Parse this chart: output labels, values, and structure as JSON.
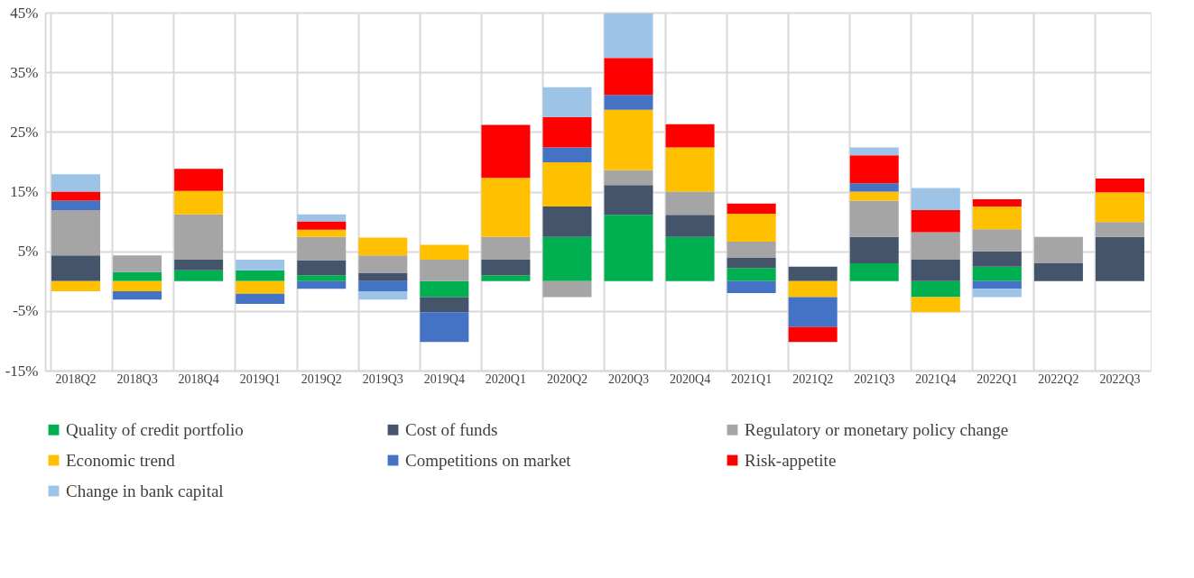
{
  "chart_data": {
    "type": "bar",
    "stacked": true,
    "categories": [
      "2018Q2",
      "2018Q3",
      "2018Q4",
      "2019Q1",
      "2019Q2",
      "2019Q3",
      "2019Q4",
      "2020Q1",
      "2020Q2",
      "2020Q3",
      "2020Q4",
      "2021Q1",
      "2021Q2",
      "2021Q3",
      "2021Q4",
      "2022Q1",
      "2022Q2",
      "2022Q3"
    ],
    "series": [
      {
        "name": "Quality of credit portfolio",
        "color": "#00b050",
        "values": [
          null,
          1.5,
          1.8,
          1.8,
          1.0,
          null,
          -2.7,
          1.0,
          7.4,
          11.1,
          7.4,
          2.2,
          null,
          3.0,
          -2.7,
          2.4,
          null,
          null
        ]
      },
      {
        "name": "Cost of funds",
        "color": "#44546a",
        "values": [
          4.3,
          null,
          1.8,
          null,
          2.5,
          1.4,
          -2.5,
          2.6,
          5.1,
          5.0,
          3.7,
          1.7,
          2.4,
          4.4,
          3.6,
          2.6,
          3.0,
          7.4
        ]
      },
      {
        "name": "Regulatory or monetary policy change",
        "color": "#a5a5a5",
        "values": [
          7.6,
          2.8,
          7.6,
          null,
          3.9,
          2.9,
          3.6,
          3.8,
          -2.7,
          2.5,
          3.9,
          2.7,
          null,
          6.1,
          4.6,
          3.7,
          4.4,
          2.5
        ]
      },
      {
        "name": "Economic trend",
        "color": "#ffc000",
        "values": [
          -1.7,
          -1.7,
          3.9,
          -2.1,
          1.2,
          3.0,
          2.5,
          9.9,
          7.4,
          10.1,
          7.4,
          4.7,
          -2.7,
          1.5,
          -2.5,
          3.8,
          null,
          5.0
        ]
      },
      {
        "name": "Competitions on market",
        "color": "#4472c4",
        "values": [
          1.6,
          -1.4,
          null,
          -1.7,
          -1.3,
          -1.7,
          -5.0,
          null,
          2.5,
          2.5,
          null,
          -2.0,
          -5.0,
          1.4,
          null,
          -1.3,
          null,
          null
        ]
      },
      {
        "name": "Risk-appetite",
        "color": "#ff0000",
        "values": [
          1.5,
          null,
          3.7,
          null,
          1.4,
          null,
          null,
          8.9,
          5.1,
          6.2,
          3.9,
          1.7,
          -2.5,
          4.7,
          3.7,
          1.2,
          null,
          2.3
        ]
      },
      {
        "name": "Change in bank capital",
        "color": "#9dc3e6",
        "values": [
          2.9,
          null,
          null,
          1.8,
          1.2,
          -1.4,
          null,
          null,
          5.0,
          7.5,
          null,
          null,
          null,
          1.3,
          3.7,
          -1.4,
          null,
          null
        ]
      }
    ],
    "ylim": [
      -15,
      45
    ],
    "yticks": [
      {
        "value": -15,
        "label": "-15%"
      },
      {
        "value": -5,
        "label": "-5%"
      },
      {
        "value": 5,
        "label": "5%"
      },
      {
        "value": 15,
        "label": "15%"
      },
      {
        "value": 25,
        "label": "25%"
      },
      {
        "value": 35,
        "label": "35%"
      },
      {
        "value": 45,
        "label": "45%"
      }
    ],
    "grid": true,
    "legend": "bottom"
  }
}
